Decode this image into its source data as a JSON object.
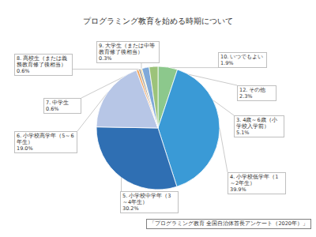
{
  "chart_data": {
    "type": "pie",
    "title": "プログラミング教育を始める時期について",
    "categories": [
      "3. 4歳～6歳（小学校入学前）",
      "4. 小学校低学年（1～2年生）",
      "5. 小学校中学年（3～4年生）",
      "6. 小学校高学年（5～6年生）",
      "7. 中学生",
      "8. 高校生（または義務教育修了後相当）",
      "9. 大学生（または中等教育修了後相当）",
      "10. いつでもよい",
      "12. その他"
    ],
    "values": [
      5.1,
      39.9,
      30.2,
      19.0,
      0.6,
      0.6,
      0.3,
      1.9,
      2.3
    ],
    "value_labels": [
      "5.1%",
      "39.9%",
      "30.2%",
      "19.0%",
      "0.6%",
      "0.6%",
      "0.3%",
      "1.9%",
      "2.3%"
    ],
    "colors": [
      "#8cc88c",
      "#3a9ad6",
      "#2f6fb3",
      "#b7c6e6",
      "#f0a35e",
      "#a5a5a5",
      "#f2c12e",
      "#7fa9d9",
      "#9cc37a"
    ],
    "data_labels": true,
    "annotations": [
      "「プログラミング教育 全国自治体首長アンケート（2020年）」"
    ]
  }
}
